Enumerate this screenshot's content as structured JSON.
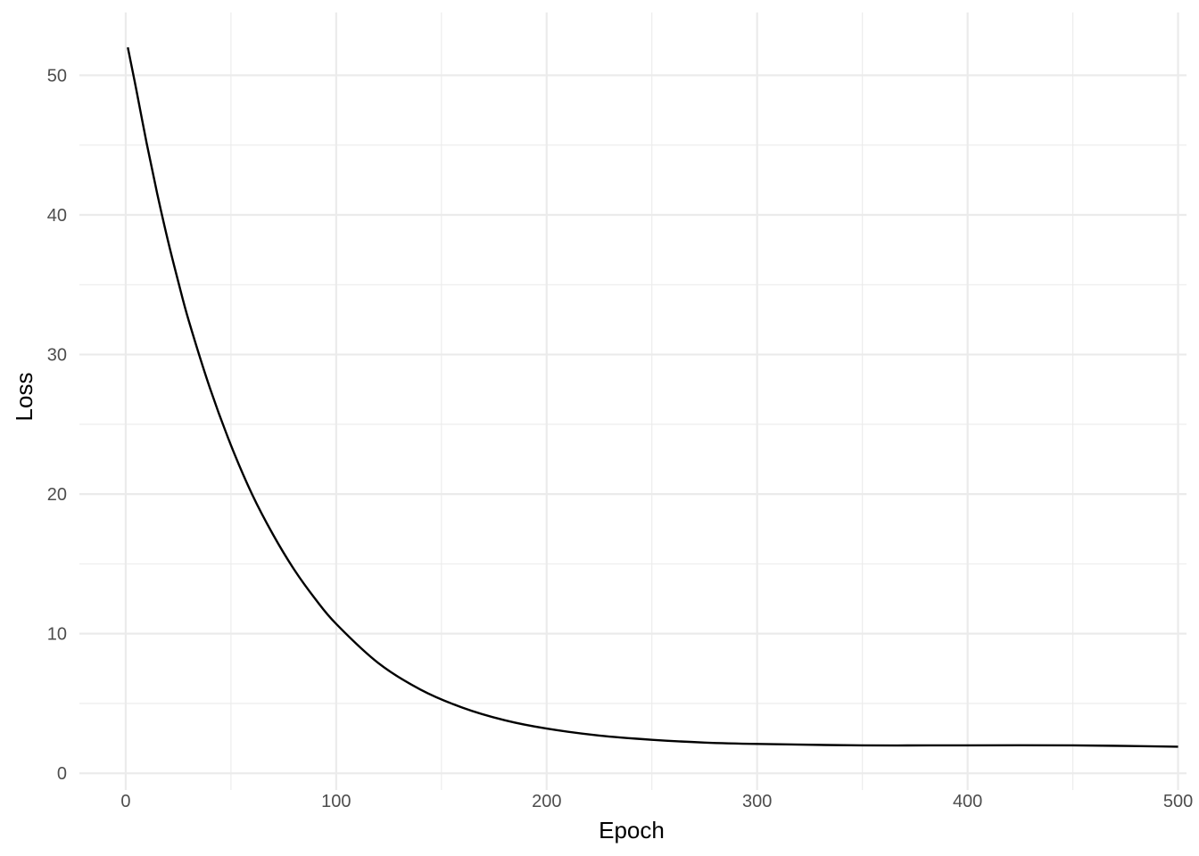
{
  "chart_data": {
    "type": "line",
    "title": "",
    "xlabel": "Epoch",
    "ylabel": "Loss",
    "xlim": [
      -22,
      504
    ],
    "ylim": [
      -1.2,
      54.5
    ],
    "x_ticks": [
      0,
      100,
      200,
      300,
      400,
      500
    ],
    "y_ticks": [
      0,
      10,
      20,
      30,
      40,
      50
    ],
    "x_tick_labels": [
      "0",
      "100",
      "200",
      "300",
      "400",
      "500"
    ],
    "y_tick_labels": [
      "0",
      "10",
      "20",
      "30",
      "40",
      "50"
    ],
    "x_minor_ticks": [
      50,
      150,
      250,
      350,
      450
    ],
    "y_minor_ticks": [
      5,
      15,
      25,
      35,
      45
    ],
    "grid": true,
    "legend": "none",
    "colors": {
      "line": "#000000",
      "grid": "#ebebeb",
      "background": "#ffffff"
    },
    "series": [
      {
        "x": [
          1,
          5,
          10,
          15,
          20,
          25,
          30,
          40,
          50,
          60,
          70,
          80,
          90,
          100,
          120,
          140,
          160,
          180,
          200,
          225,
          250,
          275,
          300,
          350,
          400,
          450,
          500
        ],
        "y": [
          52.0,
          49.0,
          45.1,
          41.5,
          38.2,
          35.2,
          32.4,
          27.6,
          23.5,
          20.0,
          17.1,
          14.6,
          12.5,
          10.7,
          7.9,
          6.0,
          4.7,
          3.8,
          3.2,
          2.7,
          2.4,
          2.2,
          2.1,
          2.0,
          2.0,
          2.0,
          1.9
        ]
      }
    ]
  }
}
